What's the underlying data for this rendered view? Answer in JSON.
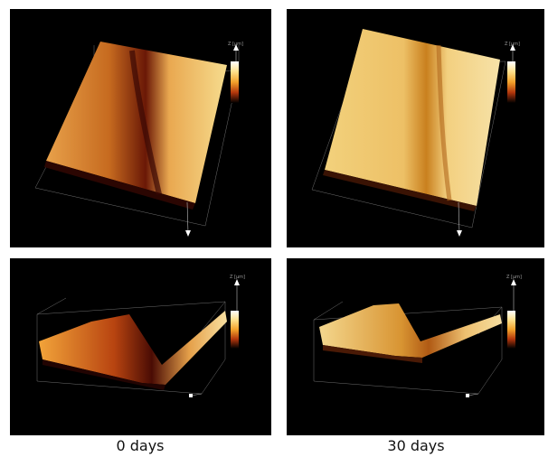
{
  "panels": [
    {
      "id": "top-left",
      "axis_label": "Z [µm]"
    },
    {
      "id": "top-right",
      "axis_label": "Z [µm]"
    },
    {
      "id": "bottom-left",
      "axis_label": "Z [µm]"
    },
    {
      "id": "bottom-right",
      "axis_label": "Z [µm]"
    }
  ],
  "captions": {
    "left": "0 days",
    "right": "30 days"
  },
  "colormap": [
    "#ffffff",
    "#ffe08a",
    "#f2a12a",
    "#b2360c",
    "#3d0703",
    "#000000"
  ]
}
